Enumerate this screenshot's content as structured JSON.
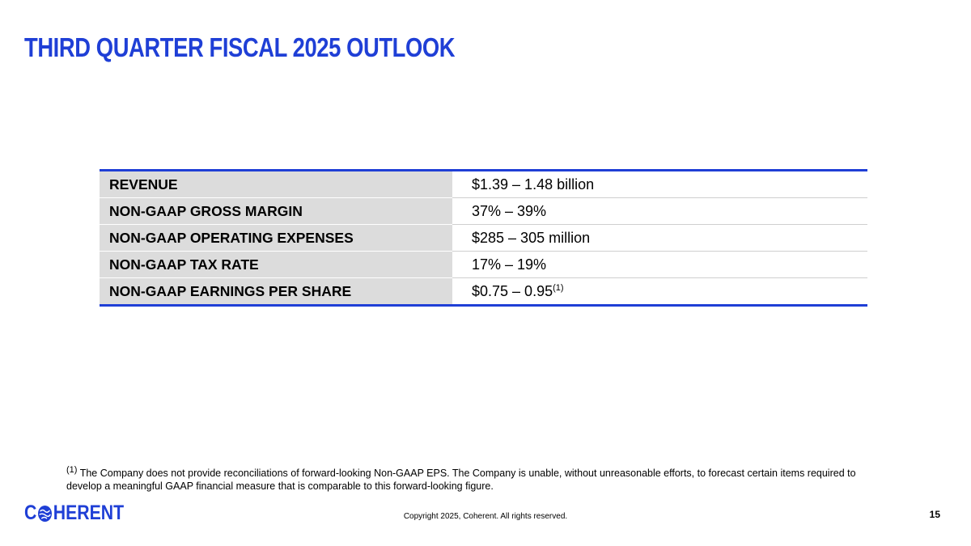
{
  "header": {
    "title": "THIRD QUARTER FISCAL 2025 OUTLOOK"
  },
  "table": {
    "rows": [
      [
        "REVENUE",
        "$1.39 – 1.48 billion"
      ],
      [
        "NON-GAAP GROSS MARGIN",
        "37% – 39%"
      ],
      [
        "NON-GAAP OPERATING EXPENSES",
        "$285 – 305 million"
      ],
      [
        "NON-GAAP TAX RATE",
        "17% – 19%"
      ],
      [
        "NON-GAAP EARNINGS PER SHARE",
        "$0.75 – 0.95",
        "(1)"
      ]
    ]
  },
  "footnote": {
    "marker": "(1)",
    "text": "The Company does not provide reconciliations of forward-looking Non-GAAP EPS. The Company is unable, without unreasonable efforts, to forecast certain items required to develop a meaningful GAAP financial measure that is comparable to this forward-looking figure."
  },
  "footer": {
    "logo_start": "C",
    "logo_end": "HERENT",
    "copyright": "Copyright 2025, Coherent. All rights reserved.",
    "page": "15"
  }
}
